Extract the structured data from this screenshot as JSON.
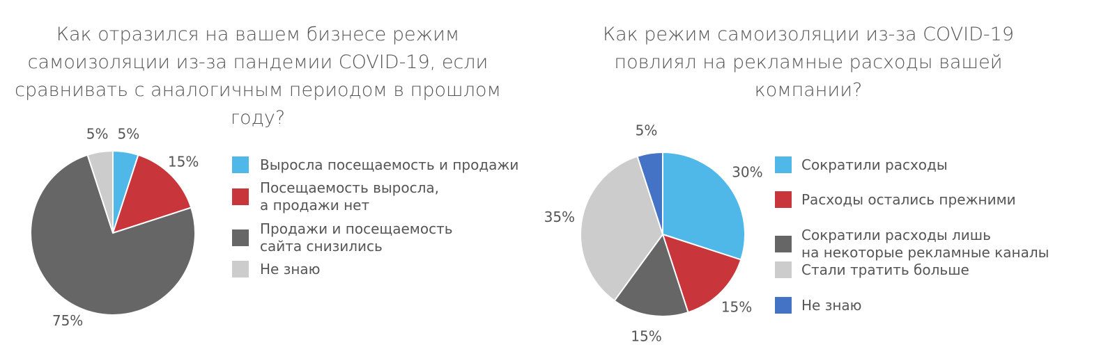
{
  "chart_data": [
    {
      "type": "pie",
      "title": "Как отразился на вашем бизнесе режим\nсамоизоляции из-за пандемии COVID-19, если\nсравнивать с аналогичным периодом в прошлом году?",
      "categories": [
        "Выросла посещаемость и продажи",
        "Посещаемость выросла,\nа продажи нет",
        "Продажи и посещаемость\nсайта снизились",
        "Не знаю"
      ],
      "values": [
        5,
        15,
        75,
        5
      ],
      "value_labels": [
        "5%",
        "15%",
        "75%",
        "5%"
      ],
      "colors": [
        "#4fb8e8",
        "#c8353a",
        "#666666",
        "#cccccc"
      ]
    },
    {
      "type": "pie",
      "title": "Как режим самоизоляции из-за COVID-19\nповлиял на рекламные расходы вашей\nкомпании?",
      "categories": [
        "Сократили расходы",
        "Расходы остались прежними",
        "Сократили расходы лишь\nна некоторые рекламные каналы",
        "Стали тратить больше",
        "Не знаю"
      ],
      "values": [
        30,
        15,
        15,
        35,
        5
      ],
      "value_labels": [
        "30%",
        "15%",
        "15%",
        "35%",
        "5%"
      ],
      "colors": [
        "#4fb8e8",
        "#c8353a",
        "#666666",
        "#cccccc",
        "#4472c4"
      ]
    }
  ]
}
